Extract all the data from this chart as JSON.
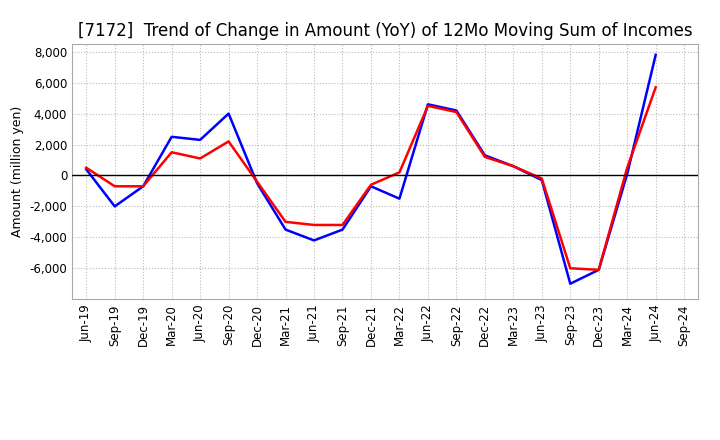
{
  "title": "[7172]  Trend of Change in Amount (YoY) of 12Mo Moving Sum of Incomes",
  "ylabel": "Amount (million yen)",
  "xlabels": [
    "Jun-19",
    "Sep-19",
    "Dec-19",
    "Mar-20",
    "Jun-20",
    "Sep-20",
    "Dec-20",
    "Mar-21",
    "Jun-21",
    "Sep-21",
    "Dec-21",
    "Mar-22",
    "Jun-22",
    "Sep-22",
    "Dec-22",
    "Mar-23",
    "Jun-23",
    "Sep-23",
    "Dec-23",
    "Mar-24",
    "Jun-24",
    "Sep-24"
  ],
  "ordinary_income": [
    400,
    -2000,
    -700,
    2500,
    2300,
    4000,
    -500,
    -3500,
    -4200,
    -3500,
    -700,
    -1500,
    4600,
    4200,
    1300,
    600,
    -300,
    -7000,
    -6100,
    100,
    7800,
    null
  ],
  "net_income": [
    500,
    -700,
    -700,
    1500,
    1100,
    2200,
    -400,
    -3000,
    -3200,
    -3200,
    -600,
    200,
    4500,
    4100,
    1200,
    600,
    -200,
    -6000,
    -6100,
    500,
    5700,
    null
  ],
  "ylim": [
    -8000,
    8500
  ],
  "yticks": [
    -6000,
    -4000,
    -2000,
    0,
    2000,
    4000,
    6000,
    8000
  ],
  "ordinary_color": "#0000FF",
  "net_color": "#FF0000",
  "background_color": "#FFFFFF",
  "grid_color": "#BBBBBB",
  "title_fontsize": 12,
  "axis_fontsize": 9,
  "tick_fontsize": 8.5
}
